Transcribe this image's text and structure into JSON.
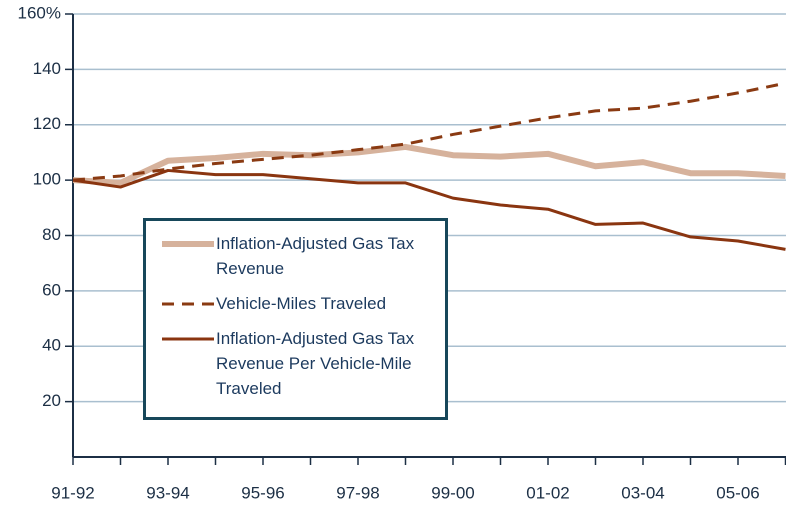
{
  "chart_data": {
    "type": "line",
    "categories": [
      "91-92",
      null,
      "93-94",
      null,
      "95-96",
      null,
      "97-98",
      null,
      "99-00",
      null,
      "01-02",
      null,
      "03-04",
      null,
      "05-06",
      null
    ],
    "series": [
      {
        "name": "Inflation-Adjusted Gas Tax Revenue",
        "color": "#d6b29c",
        "width": 6,
        "dash": false,
        "values": [
          100,
          99,
          107,
          108,
          109.5,
          109,
          110,
          112,
          109,
          108.5,
          109.5,
          105,
          106.5,
          102.5,
          102.5,
          101.5
        ]
      },
      {
        "name": "Vehicle-Miles Traveled",
        "color": "#8a3a12",
        "width": 3,
        "dash": true,
        "values": [
          100,
          101.5,
          104,
          106,
          107.5,
          109,
          111,
          113,
          116.5,
          119.5,
          122.5,
          125,
          126,
          128.5,
          131.5,
          135
        ]
      },
      {
        "name": "Inflation-Adjusted Gas Tax Revenue Per Vehicle-Mile Traveled",
        "color": "#8a3510",
        "width": 3,
        "dash": false,
        "values": [
          100,
          97.5,
          103.5,
          102,
          102,
          100.5,
          99,
          99,
          93.5,
          91,
          89.5,
          84,
          84.5,
          79.5,
          78,
          75
        ]
      }
    ],
    "ylim": [
      0,
      160
    ],
    "yticks": [
      20,
      40,
      60,
      80,
      100,
      120,
      140,
      {
        "value": 160,
        "label": "160%"
      }
    ],
    "grid": true
  }
}
